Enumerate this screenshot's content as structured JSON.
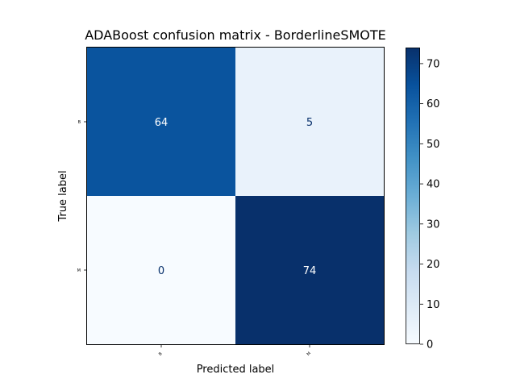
{
  "chart_data": {
    "type": "heatmap",
    "title": "ADABoost confusion matrix - BorderlineSMOTE",
    "xlabel": "Predicted label",
    "ylabel": "True label",
    "x_categories": [
      "B",
      "M"
    ],
    "y_categories": [
      "B",
      "M"
    ],
    "matrix": [
      [
        64,
        5
      ],
      [
        0,
        74
      ]
    ],
    "colormap": "Blues",
    "colorbar": {
      "range": [
        0,
        74
      ],
      "ticks": [
        0,
        10,
        20,
        30,
        40,
        50,
        60,
        70
      ],
      "tick_labels": [
        "0",
        "10",
        "20",
        "30",
        "40",
        "50",
        "60",
        "70"
      ]
    },
    "grid": false
  }
}
